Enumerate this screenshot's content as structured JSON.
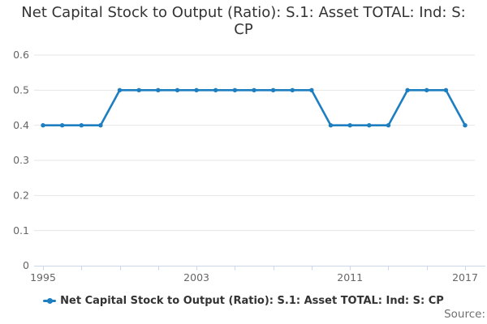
{
  "chart_data": {
    "type": "line",
    "title": "Net Capital Stock to Output (Ratio): S.1: Asset TOTAL: Ind: S: CP",
    "x": [
      1995,
      1996,
      1997,
      1998,
      1999,
      2000,
      2001,
      2002,
      2003,
      2004,
      2005,
      2006,
      2007,
      2008,
      2009,
      2010,
      2011,
      2012,
      2013,
      2014,
      2015,
      2016,
      2017
    ],
    "series": [
      {
        "name": "Net Capital Stock to Output (Ratio): S.1: Asset TOTAL: Ind: S: CP",
        "values": [
          0.4,
          0.4,
          0.4,
          0.4,
          0.5,
          0.5,
          0.5,
          0.5,
          0.5,
          0.5,
          0.5,
          0.5,
          0.5,
          0.5,
          0.5,
          0.4,
          0.4,
          0.4,
          0.4,
          0.5,
          0.5,
          0.5,
          0.4
        ]
      }
    ],
    "xlabel": "",
    "ylabel": "",
    "xlim": [
      1995,
      2017
    ],
    "ylim": [
      0,
      0.6
    ],
    "yticks": {
      "values": [
        0,
        0.1,
        0.2,
        0.3,
        0.4,
        0.5,
        0.6
      ],
      "labels": [
        "0",
        "0.1",
        "0.2",
        "0.3",
        "0.4",
        "0.5",
        "0.6"
      ]
    },
    "xticks": {
      "minor_values": [
        1995,
        1997,
        1999,
        2001,
        2003,
        2005,
        2007,
        2009,
        2011,
        2013,
        2015,
        2017
      ],
      "labeled_values": [
        1995,
        2003,
        2011,
        2017
      ],
      "labels": [
        "1995",
        "2003",
        "2011",
        "2017"
      ]
    },
    "grid": "horizontal",
    "legend_position": "bottom",
    "colors": {
      "series": "#1d7ec0",
      "grid": "#e6e6e6",
      "axis_line": "#ccd6eb",
      "tick_label": "#666666",
      "title": "#333333",
      "source": "#707070"
    }
  },
  "legend": {
    "label": "Net Capital Stock to Output (Ratio): S.1: Asset TOTAL: Ind: S: CP"
  },
  "source": {
    "label": "Source:"
  }
}
